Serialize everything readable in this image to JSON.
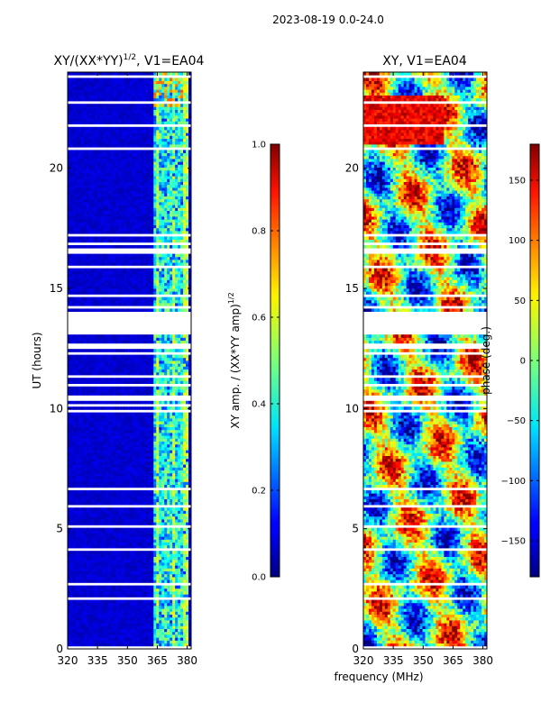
{
  "suptitle": "2023-08-19 0.0-24.0",
  "xlabel": "frequency (MHz)",
  "chart_data": [
    {
      "type": "heatmap",
      "title": "XY/(XX*YY)^1/2, V1=EA04",
      "title_main": "XY/(XX*YY)",
      "title_sup": "1/2",
      "title_rest": ", V1=EA04",
      "xlabel": "frequency (MHz)",
      "ylabel": "UT (hours)",
      "xlim": [
        320,
        382
      ],
      "ylim": [
        0,
        24
      ],
      "xticks": [
        320,
        335,
        350,
        365,
        380
      ],
      "yticks": [
        0,
        5,
        10,
        15,
        20
      ],
      "colorbar": {
        "label": "XY amp. / (XX*YY amp)^1/2",
        "label_main": "XY amp. / (XX*YY amp)",
        "label_sup": "1/2",
        "range": [
          0.0,
          1.0
        ],
        "ticks": [
          "0.0",
          "0.2",
          "0.4",
          "0.6",
          "0.8",
          "1.0"
        ],
        "colormap": "jet"
      },
      "blank_time_ranges": [
        [
          13.1,
          14.1
        ]
      ],
      "notes": "Mostly low amplitude (~0.05) except bright vertical bands near 363-381 MHz"
    },
    {
      "type": "heatmap",
      "title": "XY, V1=EA04",
      "xlabel": "frequency (MHz)",
      "ylabel": "",
      "xlim": [
        320,
        382
      ],
      "ylim": [
        0,
        24
      ],
      "xticks": [
        320,
        335,
        350,
        365,
        380
      ],
      "yticks": [
        0,
        5,
        10,
        15,
        20
      ],
      "colorbar": {
        "label": "phase (deg.)",
        "range": [
          -180,
          180
        ],
        "ticks": [
          "−150",
          "−100",
          "−50",
          "0",
          "50",
          "100",
          "150"
        ],
        "tick_values": [
          -150,
          -100,
          -50,
          0,
          50,
          100,
          150
        ],
        "colormap": "jet"
      },
      "blank_time_ranges": [
        [
          13.1,
          14.1
        ]
      ],
      "notes": "Phase varies widely across full range"
    }
  ],
  "colors": {
    "axis": "#000000",
    "background": "#ffffff"
  }
}
